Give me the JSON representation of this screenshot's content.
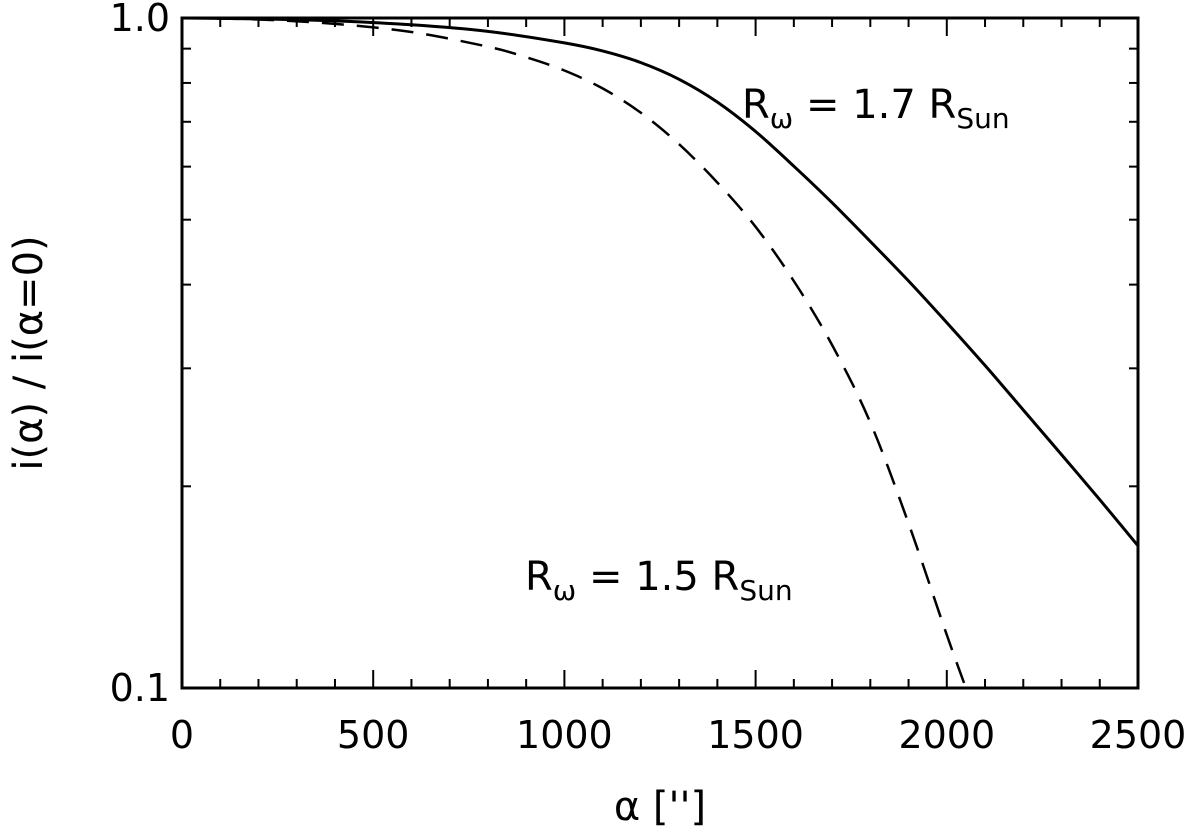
{
  "chart_data": {
    "type": "line",
    "title": "",
    "xlabel": "α  ['']",
    "ylabel": "i(α)  /  i(α=0)",
    "xlim": [
      0,
      2500
    ],
    "ylim": [
      0.1,
      1.0
    ],
    "yscale": "log",
    "x_ticks": [
      0,
      500,
      1000,
      1500,
      2000,
      2500
    ],
    "x_tick_labels": [
      "0",
      "500",
      "1000",
      "1500",
      "2000",
      "2500"
    ],
    "y_ticks": [
      0.1,
      1.0
    ],
    "y_tick_labels": [
      "0.1",
      "1.0"
    ],
    "grid": false,
    "legend": "none",
    "series": [
      {
        "style": "solid",
        "annotation": {
          "main": "R",
          "sub1": "ω",
          "middle": " =  1.7  R",
          "sub2": "Sun"
        },
        "x": [
          0,
          200,
          400,
          600,
          800,
          1000,
          1100,
          1200,
          1300,
          1400,
          1500,
          1600,
          1700,
          1800,
          1900,
          2000,
          2100,
          2200,
          2300,
          2400,
          2500
        ],
        "y": [
          1.0,
          0.997,
          0.99,
          0.977,
          0.955,
          0.918,
          0.893,
          0.858,
          0.81,
          0.749,
          0.677,
          0.601,
          0.53,
          0.464,
          0.405,
          0.351,
          0.303,
          0.26,
          0.223,
          0.191,
          0.163
        ]
      },
      {
        "style": "dashed",
        "annotation": {
          "main": "R",
          "sub1": "ω",
          "middle": " =  1.5  R",
          "sub2": "Sun"
        },
        "x": [
          0,
          200,
          400,
          600,
          800,
          900,
          1000,
          1100,
          1200,
          1300,
          1400,
          1500,
          1600,
          1700,
          1800,
          1900,
          2000,
          2050
        ],
        "y": [
          1.0,
          0.995,
          0.98,
          0.953,
          0.906,
          0.874,
          0.835,
          0.785,
          0.722,
          0.648,
          0.568,
          0.488,
          0.405,
          0.325,
          0.249,
          0.176,
          0.12,
          0.1
        ]
      }
    ]
  }
}
